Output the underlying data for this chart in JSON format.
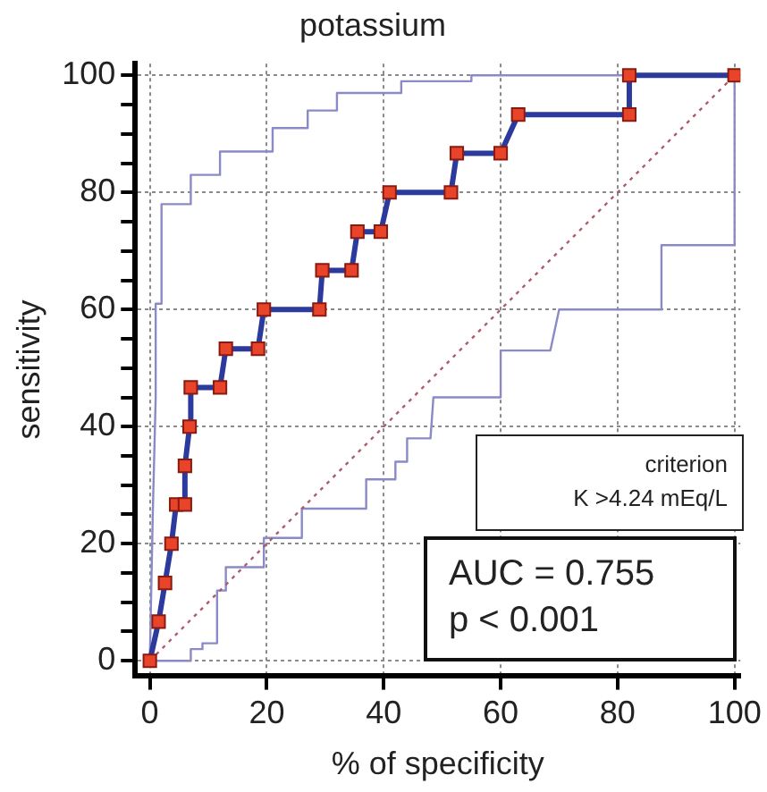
{
  "chart_data": {
    "type": "line",
    "title": "potassium",
    "xlabel": "% of specificity",
    "ylabel": "sensitivity",
    "xlim": [
      -2.5,
      101
    ],
    "ylim": [
      -2.5,
      102
    ],
    "xticks": [
      0,
      20,
      40,
      60,
      80,
      100
    ],
    "yticks": [
      0,
      {
        "value": 5,
        "label": null
      },
      {
        "value": 10,
        "label": null
      },
      {
        "value": 15,
        "label": null
      },
      20,
      {
        "value": 25,
        "label": null
      },
      {
        "value": 30,
        "label": null
      },
      {
        "value": 35,
        "label": null
      },
      40,
      {
        "value": 45,
        "label": null
      },
      {
        "value": 50,
        "label": null
      },
      {
        "value": 55,
        "label": null
      },
      60,
      {
        "value": 65,
        "label": null
      },
      {
        "value": 70,
        "label": null
      },
      {
        "value": 75,
        "label": null
      },
      80,
      {
        "value": 85,
        "label": null
      },
      {
        "value": 90,
        "label": null
      },
      {
        "value": 95,
        "label": null
      },
      100
    ],
    "grid": true,
    "legend": false,
    "annotations": [
      "criterion",
      "K >4.24 mEq/L",
      "AUC = 0.755",
      "p < 0.001"
    ],
    "series": [
      {
        "color": "#b05a6a",
        "line_style": "dotted",
        "marker": "none",
        "x": [
          0,
          100
        ],
        "values": [
          0,
          100
        ]
      },
      {
        "color": "#8a8ac8",
        "marker": "none",
        "x": [
          0,
          0.5,
          1,
          1,
          2,
          2,
          7,
          7,
          12,
          12,
          21,
          21,
          27,
          27,
          32,
          32,
          43,
          43,
          55,
          55,
          100
        ],
        "values": [
          0,
          25,
          45,
          61,
          61,
          78,
          78,
          83,
          83,
          87,
          87,
          91,
          91,
          94,
          94,
          97,
          97,
          99,
          99,
          100,
          100
        ]
      },
      {
        "color": "#8a8ac8",
        "marker": "none",
        "x": [
          0,
          7,
          7,
          9,
          9,
          11.5,
          11.5,
          13,
          13,
          19.5,
          19.5,
          26,
          26,
          37,
          37,
          42,
          42,
          44,
          44,
          48,
          48.5,
          60,
          60,
          68.5,
          70,
          87.5,
          87.5,
          100,
          100
        ],
        "values": [
          0,
          0,
          2,
          2,
          3,
          3,
          12,
          12,
          16,
          16,
          21,
          21,
          26,
          26,
          31,
          31,
          34,
          34,
          38,
          38,
          45,
          45,
          53,
          53,
          60,
          60,
          71,
          71,
          100
        ]
      },
      {
        "color": "#2b3a9c",
        "marker": "square",
        "x": [
          0,
          1.5,
          2.6,
          3.7,
          4.5,
          6,
          6,
          6.8,
          7,
          12,
          13,
          18.5,
          19.5,
          29,
          29.5,
          34.5,
          35.5,
          39.5,
          41,
          51.5,
          52.5,
          60,
          63,
          82,
          82,
          100
        ],
        "values": [
          0,
          6.7,
          13.3,
          20,
          26.7,
          26.7,
          33.3,
          40,
          46.7,
          46.7,
          53.3,
          53.3,
          60,
          60,
          66.7,
          66.7,
          73.3,
          73.3,
          80,
          80,
          86.7,
          86.7,
          93.3,
          93.3,
          100,
          100
        ],
        "colors": [
          "#e8442a",
          "#e8442a",
          "#e8442a",
          "#e8442a",
          "#e8442a",
          "#e8442a",
          "#e8442a",
          "#e8442a",
          "#e8442a",
          "#e8442a",
          "#e8442a",
          "#e8442a",
          "#e8442a",
          "#e8442a",
          "#e8442a",
          "#e8442a",
          "#e8442a",
          "#e8442a",
          "#e8442a",
          "#e8442a",
          "#e8442a",
          "#e8442a",
          "#e8442a",
          "#e8442a",
          "#e8442a",
          "#e8442a"
        ]
      }
    ]
  }
}
